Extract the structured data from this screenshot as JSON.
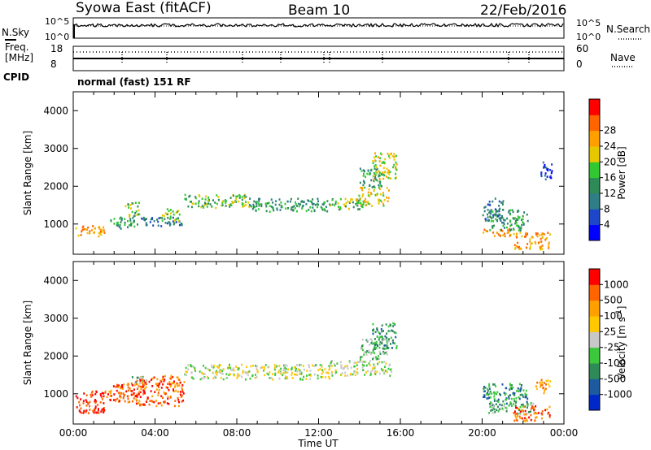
{
  "header": {
    "title": "Syowa East (fitACF)",
    "beam": "Beam 10",
    "date": "22/Feb/2016"
  },
  "status_panels": {
    "nsky_label": "N.Sky",
    "nsky_ticks": [
      "10^5",
      "10^0"
    ],
    "nsearch_label": "N.Search",
    "nsearch_ticks": [
      "10^5",
      "10^0"
    ],
    "freq_label_line1": "Freq.",
    "freq_label_line2": "[MHz]",
    "freq_ticks": [
      "18",
      "8"
    ],
    "nave_label": "Nave",
    "nave_ticks": [
      "60",
      "0"
    ],
    "cpid_label": "CPID",
    "cpid_text": "normal (fast) 151 RF"
  },
  "chart_data": [
    {
      "type": "heatmap",
      "name": "Power",
      "ylabel": "Slant Range [km]",
      "yticks": [
        1000,
        2000,
        3000,
        4000
      ],
      "ylim": [
        200,
        4500
      ],
      "xlim": [
        0,
        24
      ],
      "colorbar": {
        "label": "Power [dB]",
        "ticks": [
          "4",
          "8",
          "12",
          "16",
          "20",
          "24",
          "28"
        ],
        "colors": [
          "#0000ff",
          "#1e46c8",
          "#2e7d87",
          "#2e8b57",
          "#32c832",
          "#e6c800",
          "#ffa000",
          "#ff6400",
          "#ff0000"
        ]
      },
      "echo_regions": [
        {
          "t0": 0.1,
          "t1": 1.5,
          "r0": 700,
          "r1": 1000,
          "level": 6
        },
        {
          "t0": 1.8,
          "t1": 3.2,
          "r0": 900,
          "r1": 1200,
          "level": 3
        },
        {
          "t0": 2.5,
          "t1": 3.2,
          "r0": 1200,
          "r1": 1600,
          "level": 4
        },
        {
          "t0": 3.3,
          "t1": 5.3,
          "r0": 950,
          "r1": 1200,
          "level": 2
        },
        {
          "t0": 4.3,
          "t1": 5.2,
          "r0": 1100,
          "r1": 1450,
          "level": 4
        },
        {
          "t0": 5.4,
          "t1": 8.6,
          "r0": 1450,
          "r1": 1800,
          "level": 4
        },
        {
          "t0": 8.6,
          "t1": 12.5,
          "r0": 1350,
          "r1": 1700,
          "level": 3
        },
        {
          "t0": 12.5,
          "t1": 14.2,
          "r0": 1400,
          "r1": 1700,
          "level": 4
        },
        {
          "t0": 13.8,
          "t1": 15.4,
          "r0": 1500,
          "r1": 2000,
          "level": 5
        },
        {
          "t0": 14.0,
          "t1": 15.2,
          "r0": 2000,
          "r1": 2500,
          "level": 3
        },
        {
          "t0": 14.6,
          "t1": 15.8,
          "r0": 2200,
          "r1": 2900,
          "level": 5
        },
        {
          "t0": 20.0,
          "t1": 21.5,
          "r0": 700,
          "r1": 900,
          "level": 6
        },
        {
          "t0": 20.3,
          "t1": 22.2,
          "r0": 850,
          "r1": 1400,
          "level": 3
        },
        {
          "t0": 21.5,
          "t1": 23.3,
          "r0": 350,
          "r1": 800,
          "level": 6
        },
        {
          "t0": 20.0,
          "t1": 21.0,
          "r0": 1100,
          "r1": 1700,
          "level": 2
        },
        {
          "t0": 22.8,
          "t1": 23.4,
          "r0": 2200,
          "r1": 2700,
          "level": 1
        }
      ]
    },
    {
      "type": "heatmap",
      "name": "Velocity",
      "ylabel": "Slant Range [km]",
      "yticks": [
        1000,
        2000,
        3000,
        4000
      ],
      "ylim": [
        200,
        4500
      ],
      "xlim": [
        0,
        24
      ],
      "xticks": [
        "00:00",
        "04:00",
        "08:00",
        "12:00",
        "16:00",
        "20:00",
        "00:00"
      ],
      "xlabel": "Time UT",
      "colorbar": {
        "label": "Velocity [m s^-1]",
        "ticks": [
          "1000",
          "500",
          "100",
          "25",
          "-25",
          "-100",
          "-500",
          "-1000"
        ],
        "colors": [
          "#0028c8",
          "#1e5aa0",
          "#2e8b57",
          "#3cc83c",
          "#c8c8c8",
          "#ffc800",
          "#ffa000",
          "#ff6400",
          "#ff0000"
        ]
      },
      "echo_regions": [
        {
          "t0": 0.1,
          "t1": 1.5,
          "r0": 500,
          "r1": 1100,
          "level": 8
        },
        {
          "t0": 1.5,
          "t1": 3.3,
          "r0": 800,
          "r1": 1300,
          "level": 7
        },
        {
          "t0": 3.0,
          "t1": 5.4,
          "r0": 700,
          "r1": 1500,
          "level": 7
        },
        {
          "t0": 2.8,
          "t1": 3.6,
          "r0": 1300,
          "r1": 1500,
          "level": 3
        },
        {
          "t0": 5.4,
          "t1": 12.5,
          "r0": 1400,
          "r1": 1800,
          "level": 4
        },
        {
          "t0": 12.5,
          "t1": 15.6,
          "r0": 1500,
          "r1": 1900,
          "level": 4
        },
        {
          "t0": 14.0,
          "t1": 15.4,
          "r0": 1900,
          "r1": 2500,
          "level": 3
        },
        {
          "t0": 14.6,
          "t1": 15.8,
          "r0": 2200,
          "r1": 2900,
          "level": 2
        },
        {
          "t0": 20.0,
          "t1": 22.2,
          "r0": 700,
          "r1": 1300,
          "level": 2
        },
        {
          "t0": 20.3,
          "t1": 22.5,
          "r0": 500,
          "r1": 800,
          "level": 3
        },
        {
          "t0": 21.5,
          "t1": 23.3,
          "r0": 300,
          "r1": 700,
          "level": 7
        },
        {
          "t0": 22.6,
          "t1": 23.3,
          "r0": 1000,
          "r1": 1400,
          "level": 6
        }
      ]
    }
  ]
}
